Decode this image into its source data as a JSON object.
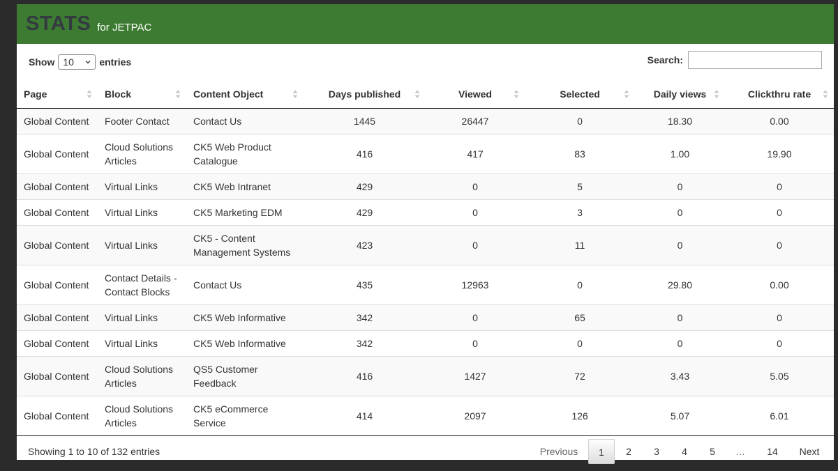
{
  "header": {
    "title": "STATS",
    "subtitle": "for JETPAC"
  },
  "length": {
    "show_label": "Show",
    "selected": "10",
    "entries_label": "entries"
  },
  "search": {
    "label": "Search:",
    "value": ""
  },
  "table": {
    "columns": [
      "Page",
      "Block",
      "Content Object",
      "Days published",
      "Viewed",
      "Selected",
      "Daily views",
      "Clickthru rate"
    ],
    "rows": [
      [
        "Global Content",
        "Footer Contact",
        "Contact Us",
        "1445",
        "26447",
        "0",
        "18.30",
        "0.00"
      ],
      [
        "Global Content",
        "Cloud Solutions Articles",
        "CK5 Web Product Catalogue",
        "416",
        "417",
        "83",
        "1.00",
        "19.90"
      ],
      [
        "Global Content",
        "Virtual Links",
        "CK5 Web Intranet",
        "429",
        "0",
        "5",
        "0",
        "0"
      ],
      [
        "Global Content",
        "Virtual Links",
        "CK5 Marketing EDM",
        "429",
        "0",
        "3",
        "0",
        "0"
      ],
      [
        "Global Content",
        "Virtual Links",
        "CK5 - Content Management Systems",
        "423",
        "0",
        "11",
        "0",
        "0"
      ],
      [
        "Global Content",
        "Contact Details - Contact Blocks",
        "Contact Us",
        "435",
        "12963",
        "0",
        "29.80",
        "0.00"
      ],
      [
        "Global Content",
        "Virtual Links",
        "CK5 Web Informative",
        "342",
        "0",
        "65",
        "0",
        "0"
      ],
      [
        "Global Content",
        "Virtual Links",
        "CK5 Web Informative",
        "342",
        "0",
        "0",
        "0",
        "0"
      ],
      [
        "Global Content",
        "Cloud Solutions Articles",
        "QS5 Customer Feedback",
        "416",
        "1427",
        "72",
        "3.43",
        "5.05"
      ],
      [
        "Global Content",
        "Cloud Solutions Articles",
        "CK5 eCommerce Service",
        "414",
        "2097",
        "126",
        "5.07",
        "6.01"
      ]
    ]
  },
  "footer": {
    "info": "Showing 1 to 10 of 132 entries"
  },
  "pagination": {
    "previous": "Previous",
    "pages": [
      "1",
      "2",
      "3",
      "4",
      "5"
    ],
    "ellipsis": "…",
    "last": "14",
    "next": "Next",
    "current": "1"
  }
}
